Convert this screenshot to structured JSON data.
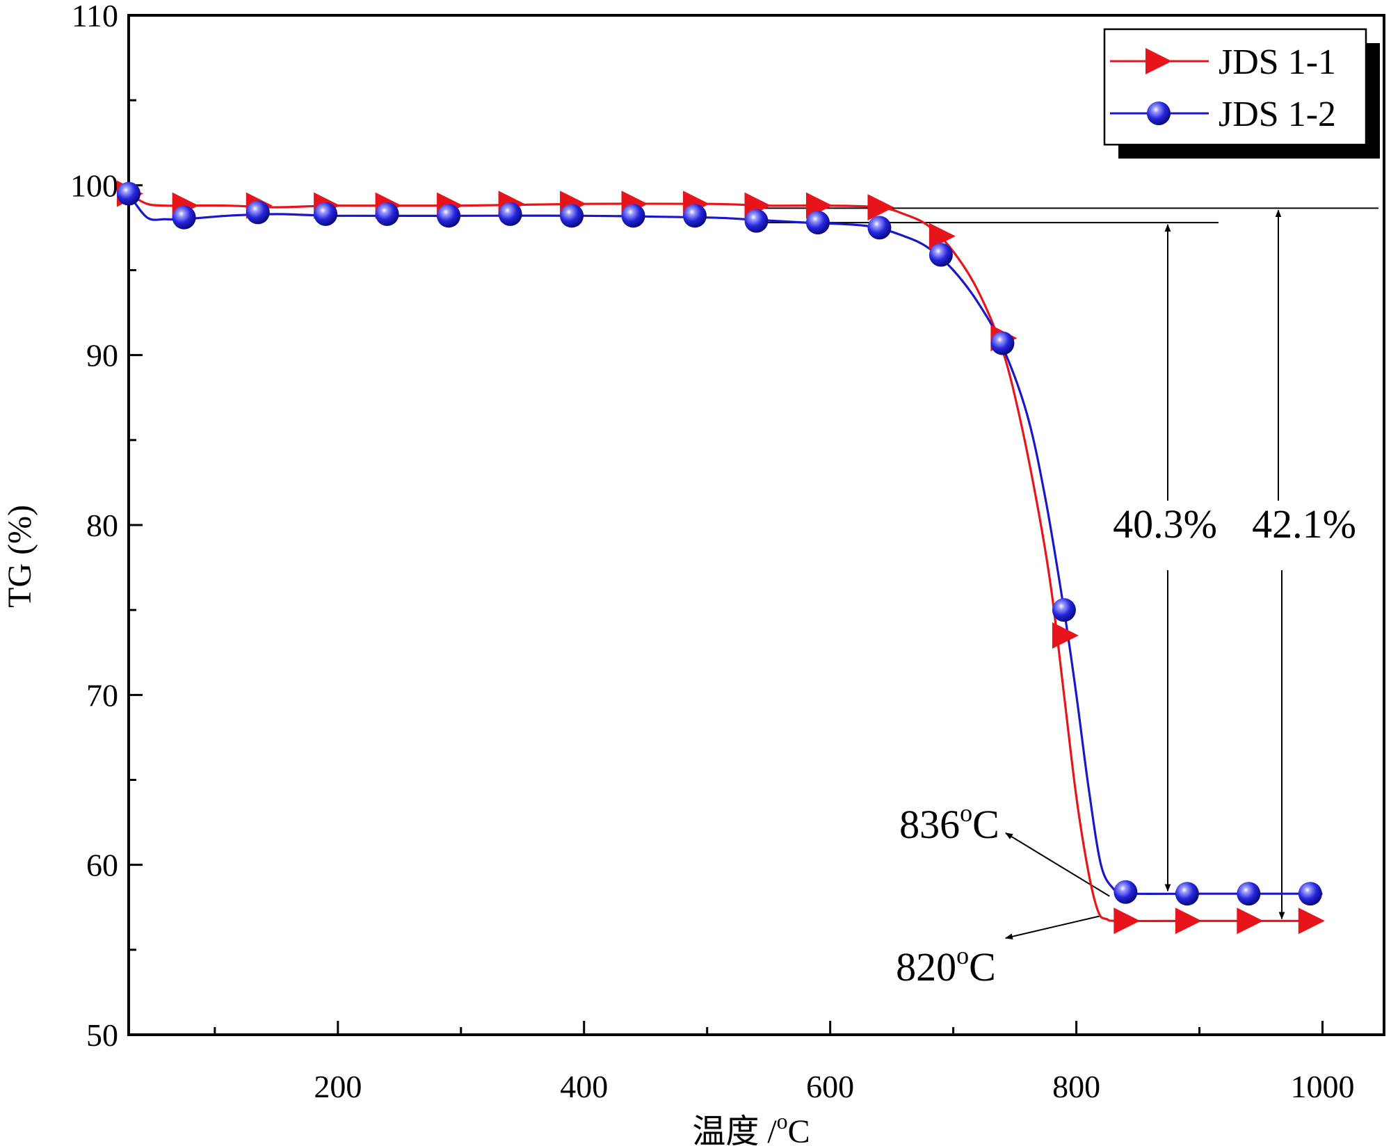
{
  "chart_data": {
    "type": "line",
    "xlabel": "温度 /",
    "xlabel_unit_sup": "o",
    "xlabel_unit": "C",
    "ylabel": "TG (%)",
    "xlim": [
      30,
      1050
    ],
    "ylim": [
      50,
      110
    ],
    "x_ticks": [
      200,
      400,
      600,
      800,
      1000
    ],
    "x_tick_labels": [
      "200",
      "400",
      "600",
      "800",
      "1000"
    ],
    "x_minor_ticks": [
      100,
      300,
      500,
      700,
      900
    ],
    "y_ticks": [
      50,
      60,
      70,
      80,
      90,
      100,
      110
    ],
    "y_tick_labels": [
      "50",
      "60",
      "70",
      "80",
      "90",
      "100",
      "110"
    ],
    "y_minor_ticks": [
      55,
      65,
      75,
      85,
      95,
      105
    ],
    "grid": false,
    "legend": "top-right",
    "series": [
      {
        "name": "JDS 1-1",
        "color": "#e8141b",
        "marker": "triangle-right",
        "x": [
          30,
          45,
          60,
          75,
          110,
          150,
          200,
          300,
          400,
          500,
          550,
          600,
          640,
          660,
          680,
          700,
          720,
          740,
          755,
          770,
          780,
          790,
          800,
          810,
          818,
          825,
          835,
          900,
          1000
        ],
        "y": [
          99.5,
          98.9,
          98.8,
          98.8,
          98.8,
          98.7,
          98.8,
          98.8,
          98.9,
          98.9,
          98.8,
          98.8,
          98.7,
          98.3,
          97.6,
          96.1,
          93.8,
          90.3,
          86.0,
          80.5,
          76.0,
          70.0,
          64.0,
          59.5,
          57.2,
          56.8,
          56.7,
          56.7,
          56.7
        ],
        "markers_x": [
          30,
          75,
          135,
          190,
          240,
          290,
          340,
          390,
          440,
          490,
          540,
          590,
          640,
          690,
          740,
          790,
          840,
          890,
          940,
          990
        ],
        "markers_y": [
          99.5,
          98.8,
          98.8,
          98.8,
          98.8,
          98.8,
          98.9,
          98.9,
          98.9,
          98.9,
          98.8,
          98.8,
          98.7,
          97.0,
          91.0,
          73.5,
          56.7,
          56.7,
          56.7,
          56.7
        ]
      },
      {
        "name": "JDS 1-2",
        "color": "#1818c8",
        "marker": "sphere",
        "x": [
          30,
          45,
          60,
          75,
          110,
          150,
          200,
          300,
          400,
          500,
          530,
          580,
          630,
          660,
          680,
          700,
          720,
          740,
          760,
          775,
          790,
          800,
          810,
          820,
          830,
          837,
          845,
          900,
          1000
        ],
        "y": [
          99.5,
          98.1,
          98.0,
          98.0,
          98.2,
          98.3,
          98.2,
          98.2,
          98.2,
          98.1,
          98.0,
          97.8,
          97.6,
          97.0,
          96.3,
          95.0,
          93.1,
          90.5,
          86.5,
          81.5,
          75.0,
          70.0,
          64.5,
          60.0,
          58.6,
          58.4,
          58.3,
          58.3,
          58.3
        ],
        "markers_x": [
          30,
          75,
          135,
          190,
          240,
          290,
          340,
          390,
          440,
          490,
          540,
          590,
          640,
          690,
          740,
          790,
          840,
          890,
          940,
          990
        ],
        "markers_y": [
          99.5,
          98.1,
          98.4,
          98.3,
          98.3,
          98.2,
          98.3,
          98.2,
          98.2,
          98.2,
          97.9,
          97.8,
          97.5,
          95.9,
          90.7,
          75.0,
          58.4,
          58.3,
          58.3,
          58.3
        ]
      }
    ],
    "annotations": {
      "loss_1_2": "40.3%",
      "loss_1_1": "42.1%",
      "temp_1_2_num": "836",
      "temp_1_1_num": "820",
      "deg_sup": "o",
      "deg_unit": "C"
    }
  }
}
